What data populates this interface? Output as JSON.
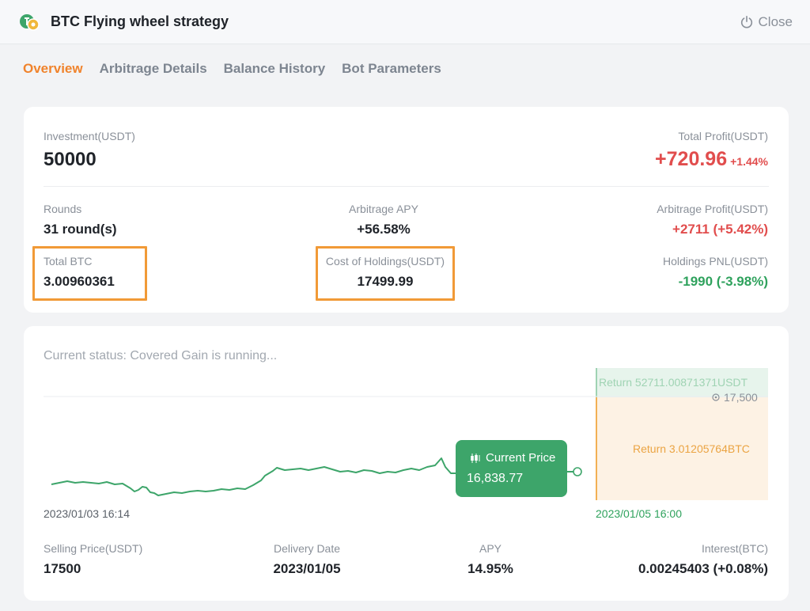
{
  "header": {
    "title": "BTC Flying wheel strategy",
    "close_label": "Close"
  },
  "tabs": [
    {
      "label": "Overview",
      "active": true
    },
    {
      "label": "Arbitrage Details",
      "active": false
    },
    {
      "label": "Balance History",
      "active": false
    },
    {
      "label": "Bot Parameters",
      "active": false
    }
  ],
  "summary": {
    "investment_label": "Investment(USDT)",
    "investment_value": "50000",
    "total_profit_label": "Total Profit(USDT)",
    "total_profit_value": "+720.96",
    "total_profit_pct": "+1.44%",
    "rounds_label": "Rounds",
    "rounds_value": "31 round(s)",
    "apy_label": "Arbitrage APY",
    "apy_value": "+56.58%",
    "arb_profit_label": "Arbitrage Profit(USDT)",
    "arb_profit_value": "+2711 (+5.42%)",
    "total_btc_label": "Total BTC",
    "total_btc_value": "3.00960361",
    "cost_label": "Cost of Holdings(USDT)",
    "cost_value": "17499.99",
    "pnl_label": "Holdings PNL(USDT)",
    "pnl_value": "-1990 (-3.98%)"
  },
  "status": {
    "text": "Current status: Covered Gain is running..."
  },
  "chart": {
    "start_date": "2023/01/03 16:14",
    "end_date": "2023/01/05 16:00",
    "current_price_label": "Current Price",
    "current_price_value": "16,838.77",
    "return_usdt_label": "Return 52711.00871371USDT",
    "return_btc_label": "Return 3.01205764BTC",
    "target_price_label": "17,500",
    "colors": {
      "line": "#3da56a",
      "usdt_zone": "#e7f4ec",
      "btc_zone": "#fdf2e4",
      "accent": "#f0832c"
    }
  },
  "bottom": {
    "selling_price_label": "Selling Price(USDT)",
    "selling_price_value": "17500",
    "delivery_label": "Delivery Date",
    "delivery_value": "2023/01/05",
    "apy_label": "APY",
    "apy_value": "14.95%",
    "interest_label": "Interest(BTC)",
    "interest_value": "0.00245403 (+0.08%)"
  }
}
